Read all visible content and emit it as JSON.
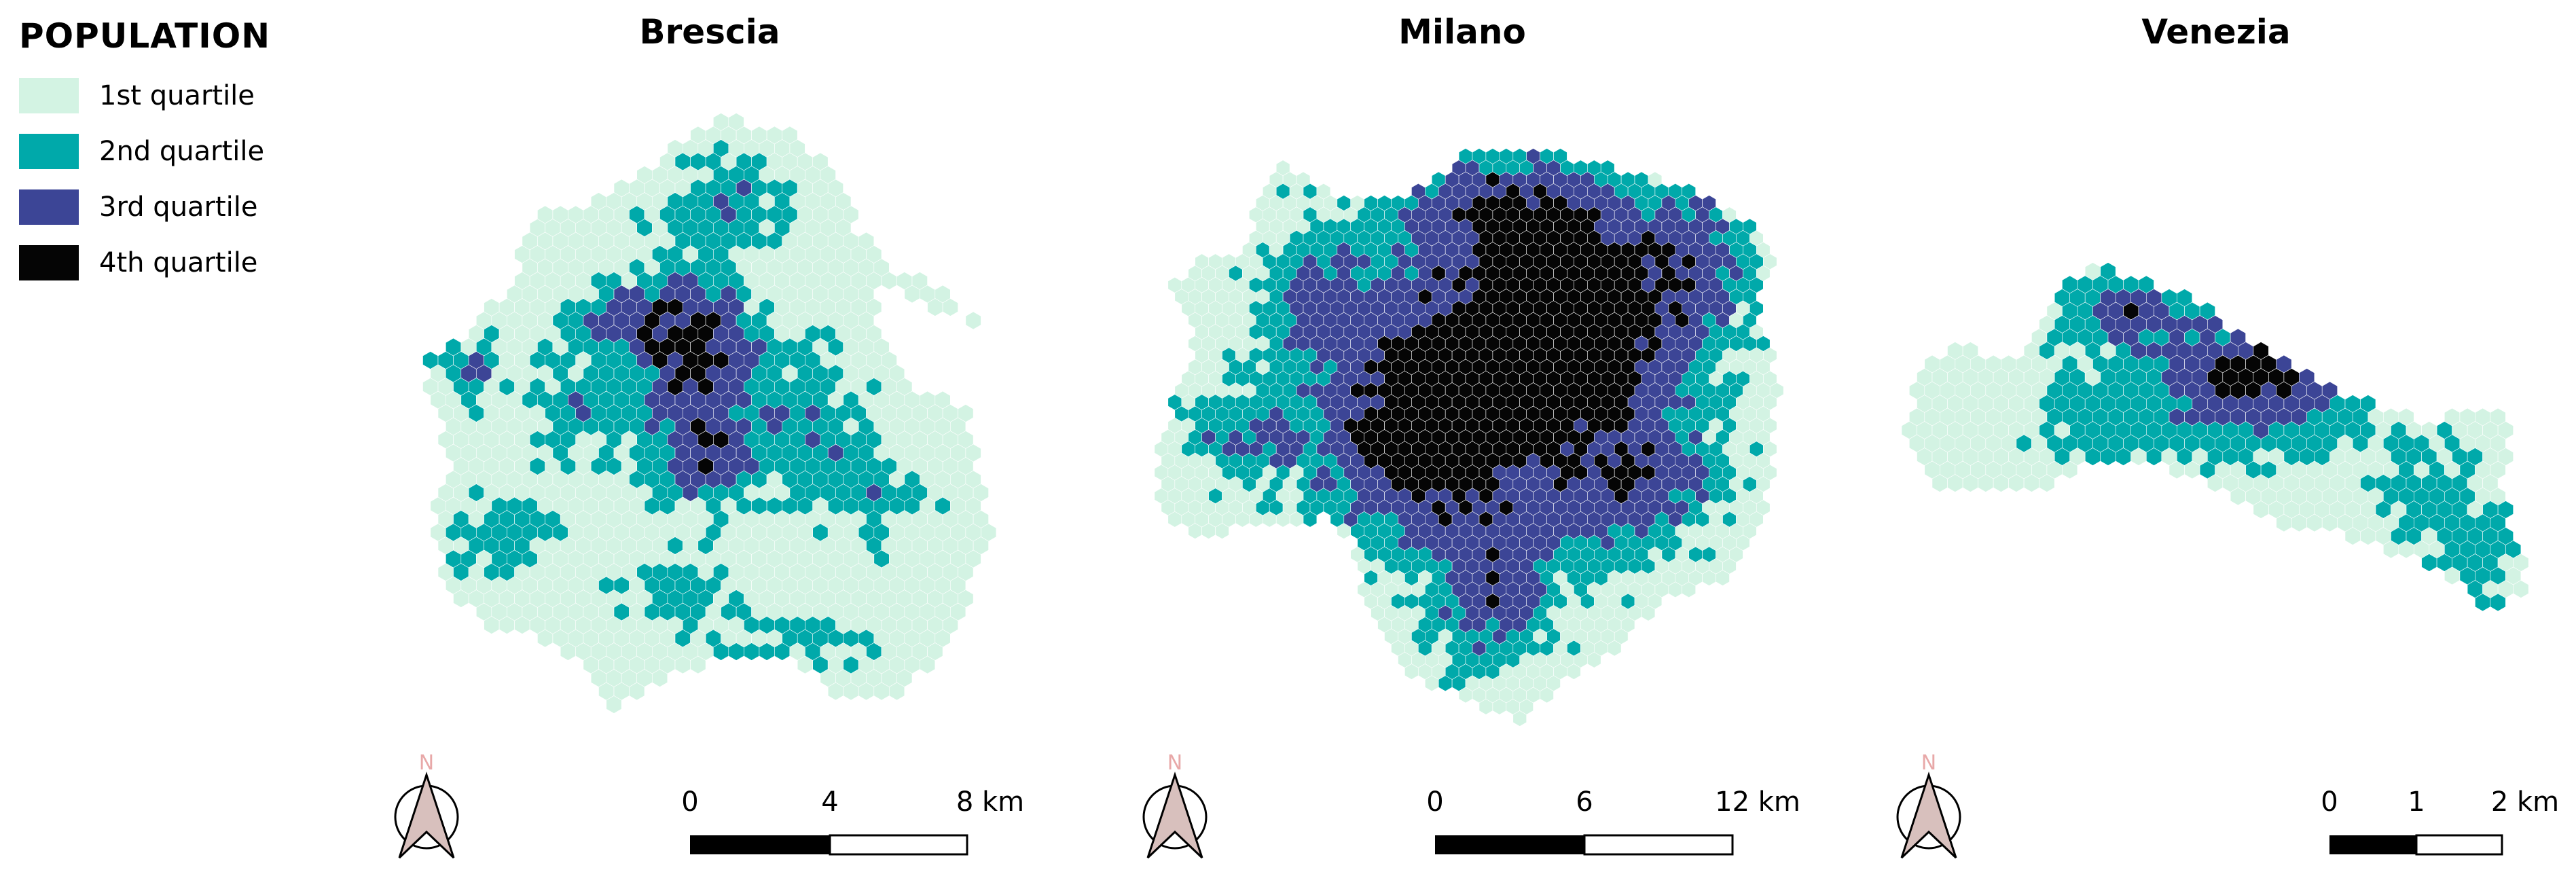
{
  "legend": {
    "title": "POPULATION",
    "items": [
      {
        "label": "1st quartile",
        "color": "#d3f3e3"
      },
      {
        "label": "2nd quartile",
        "color": "#00a9aa"
      },
      {
        "label": "3rd quartile",
        "color": "#3c4596"
      },
      {
        "label": "4th quartile",
        "color": "#050505"
      }
    ]
  },
  "colors": {
    "hex_edge": "#ffffff",
    "north_arrow_fill": "#d8c0bd",
    "north_arrow_letter": "#e8a8a8"
  },
  "maps": [
    {
      "title": "Brescia",
      "north_label": "N",
      "scale": {
        "labels": [
          "0",
          "4",
          "8 km"
        ]
      }
    },
    {
      "title": "Milano",
      "north_label": "N",
      "scale": {
        "labels": [
          "0",
          "6",
          "12 km"
        ]
      }
    },
    {
      "title": "Venezia",
      "north_label": "N",
      "scale": {
        "labels": [
          "0",
          "1",
          "2 km"
        ]
      }
    }
  ]
}
